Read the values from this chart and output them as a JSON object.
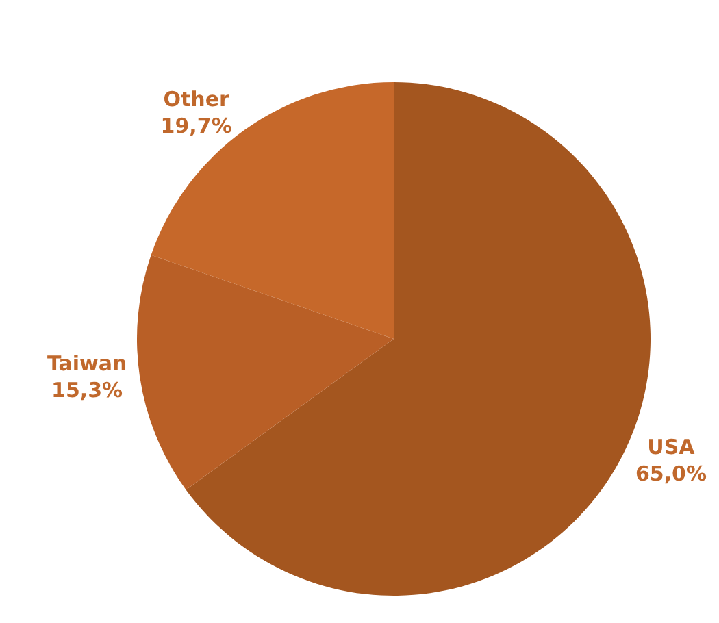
{
  "chart_data": {
    "type": "pie",
    "categories": [
      "USA",
      "Taiwan",
      "Other"
    ],
    "values": [
      65.0,
      15.3,
      19.7
    ],
    "value_labels": [
      "65,0%",
      "15,3%",
      "19,7%"
    ],
    "colors": [
      "#a4561f",
      "#b95f26",
      "#c6682a"
    ]
  }
}
